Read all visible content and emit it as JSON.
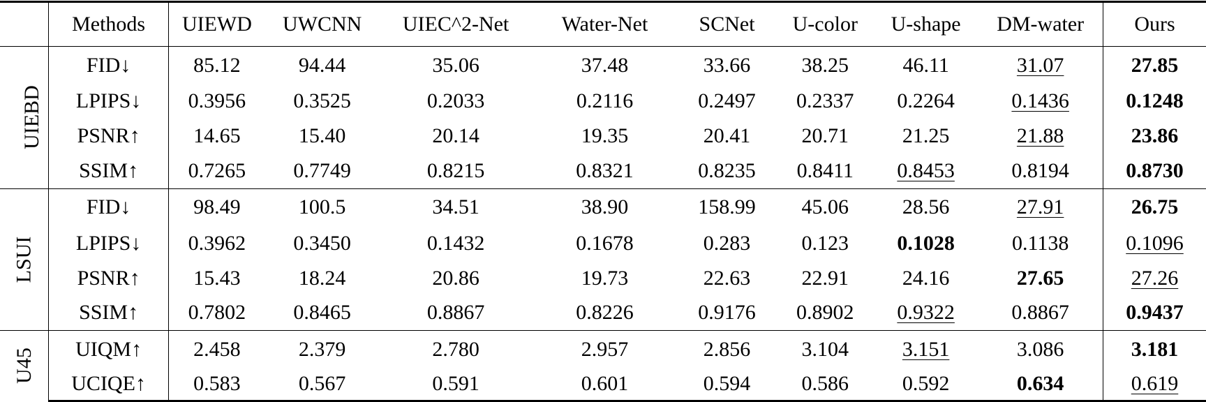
{
  "table": {
    "header": {
      "corner": "",
      "metric_col": "Methods",
      "methods": [
        "UIEWD",
        "UWCNN",
        "UIEC^2-Net",
        "Water-Net",
        "SCNet",
        "U-color",
        "U-shape",
        "DM-water",
        "Ours"
      ]
    },
    "groups": [
      {
        "name": "UIEBD",
        "rows": [
          {
            "metric": "FID↓",
            "values": [
              "85.12",
              "94.44",
              "35.06",
              "37.48",
              "33.66",
              "38.25",
              "46.11",
              "31.07",
              "27.85"
            ],
            "best": 8,
            "second": 7
          },
          {
            "metric": "LPIPS↓",
            "values": [
              "0.3956",
              "0.3525",
              "0.2033",
              "0.2116",
              "0.2497",
              "0.2337",
              "0.2264",
              "0.1436",
              "0.1248"
            ],
            "best": 8,
            "second": 7
          },
          {
            "metric": "PSNR↑",
            "values": [
              "14.65",
              "15.40",
              "20.14",
              "19.35",
              "20.41",
              "20.71",
              "21.25",
              "21.88",
              "23.86"
            ],
            "best": 8,
            "second": 7
          },
          {
            "metric": "SSIM↑",
            "values": [
              "0.7265",
              "0.7749",
              "0.8215",
              "0.8321",
              "0.8235",
              "0.8411",
              "0.8453",
              "0.8194",
              "0.8730"
            ],
            "best": 8,
            "second": 6
          }
        ]
      },
      {
        "name": "LSUI",
        "rows": [
          {
            "metric": "FID↓",
            "values": [
              "98.49",
              "100.5",
              "34.51",
              "38.90",
              "158.99",
              "45.06",
              "28.56",
              "27.91",
              "26.75"
            ],
            "best": 8,
            "second": 7
          },
          {
            "metric": "LPIPS↓",
            "values": [
              "0.3962",
              "0.3450",
              "0.1432",
              "0.1678",
              "0.283",
              "0.123",
              "0.1028",
              "0.1138",
              "0.1096"
            ],
            "best": 6,
            "second": 8
          },
          {
            "metric": "PSNR↑",
            "values": [
              "15.43",
              "18.24",
              "20.86",
              "19.73",
              "22.63",
              "22.91",
              "24.16",
              "27.65",
              "27.26"
            ],
            "best": 7,
            "second": 8
          },
          {
            "metric": "SSIM↑",
            "values": [
              "0.7802",
              "0.8465",
              "0.8867",
              "0.8226",
              "0.9176",
              "0.8902",
              "0.9322",
              "0.8867",
              "0.9437"
            ],
            "best": 8,
            "second": 6
          }
        ]
      },
      {
        "name": "U45",
        "rows": [
          {
            "metric": "UIQM↑",
            "values": [
              "2.458",
              "2.379",
              "2.780",
              "2.957",
              "2.856",
              "3.104",
              "3.151",
              "3.086",
              "3.181"
            ],
            "best": 8,
            "second": 6
          },
          {
            "metric": "UCIQE↑",
            "values": [
              "0.583",
              "0.567",
              "0.591",
              "0.601",
              "0.594",
              "0.586",
              "0.592",
              "0.634",
              "0.619"
            ],
            "best": 7,
            "second": 8
          }
        ]
      }
    ]
  }
}
